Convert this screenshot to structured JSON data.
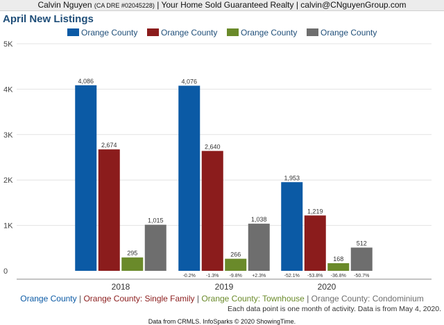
{
  "header": {
    "agent_name": "Calvin Nguyen",
    "dre": "(CA DRE #02045228)",
    "company": "Your Home Sold Guaranteed Realty",
    "email": "calvin@CNguyenGroup.com",
    "separator": " | "
  },
  "colors": {
    "all": "#0b5aa5",
    "single_family": "#8b1c1c",
    "townhouse": "#6a8a2a",
    "condominium": "#6e6e6e",
    "title": "#1f4e79",
    "axis_text": "#444444",
    "grid": "#e3e3e3"
  },
  "chart_data": {
    "type": "bar",
    "title": "April New Listings",
    "categories": [
      "2018",
      "2019",
      "2020"
    ],
    "series": [
      {
        "name": "Orange County",
        "caption": "Orange County",
        "color_key": "all",
        "values": [
          4086,
          4076,
          1953
        ],
        "value_labels": [
          "4,086",
          "4,076",
          "1,953"
        ],
        "changes": [
          "",
          "-0.2%",
          "-52.1%"
        ]
      },
      {
        "name": "Orange County",
        "caption": "Orange County: Single Family",
        "color_key": "single_family",
        "values": [
          2674,
          2640,
          1219
        ],
        "value_labels": [
          "2,674",
          "2,640",
          "1,219"
        ],
        "changes": [
          "",
          "-1.3%",
          "-53.8%"
        ]
      },
      {
        "name": "Orange County",
        "caption": "Orange County: Townhouse",
        "color_key": "townhouse",
        "values": [
          295,
          266,
          168
        ],
        "value_labels": [
          "295",
          "266",
          "168"
        ],
        "changes": [
          "",
          "-9.8%",
          "-36.8%"
        ]
      },
      {
        "name": "Orange County",
        "caption": "Orange County: Condominium",
        "color_key": "condominium",
        "values": [
          1015,
          1038,
          512
        ],
        "value_labels": [
          "1,015",
          "1,038",
          "512"
        ],
        "changes": [
          "",
          "+2.3%",
          "-50.7%"
        ]
      }
    ],
    "yticks": [
      {
        "value": 0,
        "label": "0"
      },
      {
        "value": 1000,
        "label": "1K"
      },
      {
        "value": 2000,
        "label": "2K"
      },
      {
        "value": 3000,
        "label": "3K"
      },
      {
        "value": 4000,
        "label": "4K"
      },
      {
        "value": 5000,
        "label": "5K"
      }
    ],
    "ylim": [
      0,
      5000
    ],
    "grid": true,
    "legend_position": "top"
  },
  "note": "Each data point is one month of activity. Data is from May 4, 2020.",
  "footer": "Data from CRMLS. InfoSparks © 2020 ShowingTime."
}
